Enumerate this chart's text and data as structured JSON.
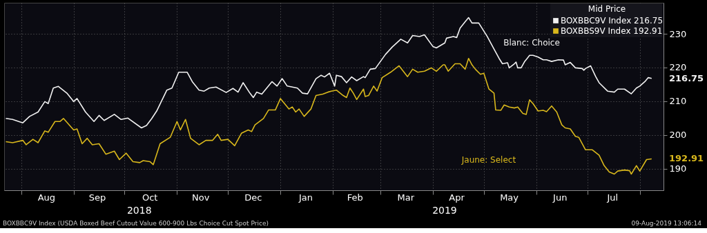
{
  "chart_data": {
    "type": "line",
    "legend_title": "Mid Price",
    "legend": "top right",
    "grid": true,
    "ylim": [
      183.6,
      239.2
    ],
    "yticks": [
      190,
      200,
      210,
      220,
      230
    ],
    "xlim": [
      "2018-07-22",
      "2019-08-15"
    ],
    "xticks": [
      {
        "value": "2018-08-01",
        "label": null
      },
      {
        "value": "2018-08-16",
        "label": "Aug"
      },
      {
        "value": "2018-09-01",
        "label": null
      },
      {
        "value": "2018-09-15",
        "label": "Sep"
      },
      {
        "value": "2018-10-01",
        "label": null
      },
      {
        "value": "2018-10-16",
        "label": "Oct"
      },
      {
        "value": "2018-11-01",
        "label": null
      },
      {
        "value": "2018-11-15",
        "label": "Nov"
      },
      {
        "value": "2018-12-01",
        "label": null
      },
      {
        "value": "2018-12-16",
        "label": "Dec"
      },
      {
        "value": "2019-01-01",
        "label": null
      },
      {
        "value": "2019-01-16",
        "label": "Jan"
      },
      {
        "value": "2019-02-01",
        "label": null
      },
      {
        "value": "2019-02-14",
        "label": "Feb"
      },
      {
        "value": "2019-03-01",
        "label": null
      },
      {
        "value": "2019-03-16",
        "label": "Mar"
      },
      {
        "value": "2019-04-01",
        "label": null
      },
      {
        "value": "2019-04-15",
        "label": "Apr"
      },
      {
        "value": "2019-05-01",
        "label": null
      },
      {
        "value": "2019-05-16",
        "label": "May"
      },
      {
        "value": "2019-06-01",
        "label": null
      },
      {
        "value": "2019-06-15",
        "label": "Jun"
      },
      {
        "value": "2019-07-01",
        "label": null
      },
      {
        "value": "2019-07-16",
        "label": "Jul"
      },
      {
        "value": "2019-08-01",
        "label": null
      }
    ],
    "annotations": [
      "Blanc: Choice",
      "Jaune: Select",
      "2018",
      "2019",
      "BOXBBC9V Index (USDA Boxed Beef Cutout Value 600-900 Lbs Choice Cut Spot Price)",
      "09-Aug-2019 13:06:14"
    ],
    "series": [
      {
        "name": "BOXBBC9V Index 216.75",
        "color": "#f2f2f2",
        "x": [
          "2018-07-23",
          "2018-07-27",
          "2018-08-02",
          "2018-08-06",
          "2018-08-11",
          "2018-08-15",
          "2018-08-17",
          "2018-08-20",
          "2018-08-23",
          "2018-08-28",
          "2018-09-01",
          "2018-09-03",
          "2018-09-08",
          "2018-09-13",
          "2018-09-16",
          "2018-09-19",
          "2018-09-25",
          "2018-09-29",
          "2018-10-03",
          "2018-10-11",
          "2018-10-14",
          "2018-10-17",
          "2018-10-20",
          "2018-10-26",
          "2018-10-29",
          "2018-11-02",
          "2018-11-07",
          "2018-11-10",
          "2018-11-14",
          "2018-11-17",
          "2018-11-20",
          "2018-11-24",
          "2018-11-30",
          "2018-12-04",
          "2018-12-07",
          "2018-12-10",
          "2018-12-14",
          "2018-12-16",
          "2018-12-18",
          "2018-12-21",
          "2018-12-27",
          "2018-12-30",
          "2019-01-02",
          "2019-01-05",
          "2019-01-11",
          "2019-01-14",
          "2019-01-17",
          "2019-01-22",
          "2019-01-25",
          "2019-01-27",
          "2019-01-30",
          "2019-02-02",
          "2019-02-03",
          "2019-02-06",
          "2019-02-09",
          "2019-02-12",
          "2019-02-15",
          "2019-02-19",
          "2019-02-20",
          "2019-02-23",
          "2019-02-26",
          "2019-03-04",
          "2019-03-08",
          "2019-03-13",
          "2019-03-17",
          "2019-03-20",
          "2019-03-24",
          "2019-03-27",
          "2019-04-01",
          "2019-04-03",
          "2019-04-08",
          "2019-04-09",
          "2019-04-13",
          "2019-04-15",
          "2019-04-17",
          "2019-04-20",
          "2019-04-22",
          "2019-04-24",
          "2019-04-28",
          "2019-05-03",
          "2019-05-07",
          "2019-05-10",
          "2019-05-12",
          "2019-05-15",
          "2019-05-16",
          "2019-05-19",
          "2019-05-20",
          "2019-05-21",
          "2019-05-23",
          "2019-05-25",
          "2019-05-28",
          "2019-05-30",
          "2019-06-02",
          "2019-06-05",
          "2019-06-07",
          "2019-06-10",
          "2019-06-14",
          "2019-06-17",
          "2019-06-18",
          "2019-06-21",
          "2019-06-24",
          "2019-06-28",
          "2019-06-29",
          "2019-06-30",
          "2019-07-03",
          "2019-07-06",
          "2019-07-08",
          "2019-07-13",
          "2019-07-17",
          "2019-07-19",
          "2019-07-23",
          "2019-07-27",
          "2019-07-30",
          "2019-08-01",
          "2019-08-04",
          "2019-08-06",
          "2019-08-08"
        ],
        "values": [
          204.9,
          204.6,
          203.6,
          205.5,
          206.8,
          209.9,
          209.3,
          213.9,
          214.4,
          212.4,
          209.9,
          210.8,
          206.8,
          204.0,
          205.8,
          204.3,
          206.1,
          204.6,
          205.0,
          202.1,
          202.8,
          204.8,
          207.1,
          213.3,
          213.9,
          218.6,
          218.6,
          215.8,
          213.3,
          213.0,
          213.9,
          214.2,
          212.6,
          213.8,
          212.7,
          215.5,
          212.4,
          211.1,
          212.7,
          212.1,
          215.8,
          214.5,
          216.7,
          214.5,
          213.9,
          212.4,
          212.2,
          216.7,
          217.7,
          217.2,
          218.3,
          214.5,
          217.7,
          217.3,
          215.5,
          217.2,
          216.1,
          217.3,
          217.0,
          219.5,
          219.7,
          223.9,
          226.1,
          228.4,
          227.3,
          229.5,
          229.2,
          229.7,
          226.2,
          225.8,
          227.3,
          228.7,
          229.2,
          228.9,
          231.7,
          233.6,
          234.8,
          233.2,
          233.2,
          229.2,
          225.5,
          222.7,
          221.1,
          221.4,
          219.9,
          221.1,
          221.6,
          219.9,
          219.9,
          221.7,
          223.6,
          223.6,
          223.1,
          222.3,
          222.3,
          221.8,
          222.3,
          222.2,
          220.8,
          221.5,
          219.9,
          219.7,
          219.2,
          219.7,
          220.5,
          217.3,
          215.5,
          213.0,
          212.7,
          213.6,
          213.6,
          212.2,
          213.9,
          214.5,
          215.8,
          217.0,
          216.75
        ],
        "value_labels": [
          null,
          null,
          null,
          null,
          null,
          null,
          null,
          null,
          null,
          null,
          null,
          null,
          null,
          null,
          null,
          null,
          null,
          null,
          null,
          null,
          null,
          null,
          null,
          null,
          null,
          null,
          null,
          null,
          null,
          null,
          null,
          null,
          null,
          null,
          null,
          null,
          null,
          null,
          null,
          null,
          null,
          null,
          null,
          null,
          null,
          null,
          null,
          null,
          null,
          null,
          null,
          null,
          null,
          null,
          null,
          null,
          null,
          null,
          null,
          null,
          null,
          null,
          null,
          null,
          null,
          null,
          null,
          null,
          null,
          null,
          null,
          null,
          null,
          null,
          null,
          null,
          null,
          null,
          null,
          null,
          null,
          null,
          null,
          null,
          null,
          null,
          null,
          null,
          null,
          null,
          null,
          null,
          null,
          null,
          null,
          null,
          null,
          null,
          null,
          null,
          null,
          null,
          null,
          null,
          null,
          null,
          null,
          null,
          null,
          null,
          null,
          null,
          null,
          null,
          null,
          null,
          "216.75"
        ]
      },
      {
        "name": "BOXBBS9V Index 192.91",
        "color": "#d9b81c",
        "x": [
          "2018-07-23",
          "2018-07-27",
          "2018-08-02",
          "2018-08-04",
          "2018-08-08",
          "2018-08-11",
          "2018-08-15",
          "2018-08-17",
          "2018-08-21",
          "2018-08-24",
          "2018-08-26",
          "2018-09-01",
          "2018-09-03",
          "2018-09-06",
          "2018-09-09",
          "2018-09-12",
          "2018-09-16",
          "2018-09-20",
          "2018-09-25",
          "2018-09-28",
          "2018-10-02",
          "2018-10-06",
          "2018-10-10",
          "2018-10-12",
          "2018-10-16",
          "2018-10-18",
          "2018-10-22",
          "2018-10-28",
          "2018-11-01",
          "2018-11-03",
          "2018-11-06",
          "2018-11-09",
          "2018-11-14",
          "2018-11-18",
          "2018-11-22",
          "2018-11-25",
          "2018-11-27",
          "2018-12-01",
          "2018-12-05",
          "2018-12-09",
          "2018-12-13",
          "2018-12-15",
          "2018-12-17",
          "2018-12-22",
          "2018-12-25",
          "2018-12-29",
          "2019-01-01",
          "2019-01-06",
          "2019-01-08",
          "2019-01-10",
          "2019-01-12",
          "2019-01-15",
          "2019-01-19",
          "2019-01-22",
          "2019-01-26",
          "2019-01-29",
          "2019-01-31",
          "2019-02-03",
          "2019-02-07",
          "2019-02-09",
          "2019-02-11",
          "2019-02-13",
          "2019-02-15",
          "2019-02-19",
          "2019-02-20",
          "2019-02-22",
          "2019-02-25",
          "2019-02-27",
          "2019-03-02",
          "2019-03-07",
          "2019-03-12",
          "2019-03-17",
          "2019-03-20",
          "2019-03-23",
          "2019-03-27",
          "2019-03-31",
          "2019-04-03",
          "2019-04-07",
          "2019-04-08",
          "2019-04-10",
          "2019-04-14",
          "2019-04-17",
          "2019-04-20",
          "2019-04-22",
          "2019-04-24",
          "2019-04-26",
          "2019-04-29",
          "2019-05-01",
          "2019-05-04",
          "2019-05-07",
          "2019-05-08",
          "2019-05-11",
          "2019-05-13",
          "2019-05-16",
          "2019-05-19",
          "2019-05-21",
          "2019-05-24",
          "2019-05-26",
          "2019-05-28",
          "2019-05-30",
          "2019-06-02",
          "2019-06-05",
          "2019-06-07",
          "2019-06-10",
          "2019-06-13",
          "2019-06-16",
          "2019-06-18",
          "2019-06-21",
          "2019-06-24",
          "2019-06-26",
          "2019-06-30",
          "2019-07-04",
          "2019-07-08",
          "2019-07-11",
          "2019-07-14",
          "2019-07-17",
          "2019-07-19",
          "2019-07-23",
          "2019-07-26",
          "2019-07-27",
          "2019-07-30",
          "2019-08-01",
          "2019-08-05",
          "2019-08-08"
        ],
        "values": [
          198.0,
          197.7,
          198.4,
          197.1,
          198.7,
          197.7,
          201.2,
          200.8,
          204.0,
          204.0,
          204.9,
          201.5,
          201.8,
          197.4,
          199.0,
          197.1,
          197.4,
          194.3,
          195.2,
          192.7,
          194.6,
          192.1,
          191.8,
          192.4,
          192.1,
          191.2,
          197.4,
          199.3,
          204.0,
          201.5,
          204.6,
          199.0,
          197.1,
          198.4,
          198.4,
          200.2,
          198.4,
          198.7,
          196.8,
          200.5,
          201.5,
          201.0,
          203.0,
          204.9,
          207.4,
          207.4,
          210.8,
          207.7,
          208.3,
          206.8,
          207.7,
          205.5,
          207.7,
          211.7,
          212.1,
          212.7,
          213.0,
          213.3,
          211.7,
          211.1,
          213.9,
          212.4,
          210.5,
          213.6,
          211.4,
          211.7,
          214.5,
          213.0,
          217.0,
          218.6,
          220.5,
          217.3,
          219.5,
          218.6,
          218.9,
          219.9,
          218.9,
          220.8,
          220.8,
          218.9,
          221.1,
          221.1,
          219.5,
          222.7,
          220.8,
          219.5,
          218.0,
          218.3,
          213.6,
          212.4,
          207.4,
          207.3,
          208.9,
          208.3,
          208.0,
          208.3,
          206.4,
          206.1,
          210.4,
          209.3,
          207.1,
          207.3,
          206.9,
          208.6,
          206.8,
          203.0,
          202.1,
          201.8,
          199.6,
          199.3,
          195.6,
          195.6,
          194.0,
          190.9,
          189.0,
          188.4,
          189.3,
          189.6,
          189.4,
          188.4,
          190.9,
          189.3,
          192.7,
          192.91
        ],
        "value_labels": [
          null,
          null,
          null,
          null,
          null,
          null,
          null,
          null,
          null,
          null,
          null,
          null,
          null,
          null,
          null,
          null,
          null,
          null,
          null,
          null,
          null,
          null,
          null,
          null,
          null,
          null,
          null,
          null,
          null,
          null,
          null,
          null,
          null,
          null,
          null,
          null,
          null,
          null,
          null,
          null,
          null,
          null,
          null,
          null,
          null,
          null,
          null,
          null,
          null,
          null,
          null,
          null,
          null,
          null,
          null,
          null,
          null,
          null,
          null,
          null,
          null,
          null,
          null,
          null,
          null,
          null,
          null,
          null,
          null,
          null,
          null,
          null,
          null,
          null,
          null,
          null,
          null,
          null,
          null,
          null,
          null,
          null,
          null,
          null,
          null,
          null,
          null,
          null,
          null,
          null,
          null,
          null,
          null,
          null,
          null,
          null,
          null,
          null,
          null,
          null,
          null,
          null,
          null,
          null,
          null,
          null,
          null,
          null,
          null,
          null,
          null,
          null,
          null,
          null,
          null,
          null,
          null,
          null,
          null,
          null,
          null,
          null,
          null,
          "192.91"
        ]
      }
    ]
  }
}
